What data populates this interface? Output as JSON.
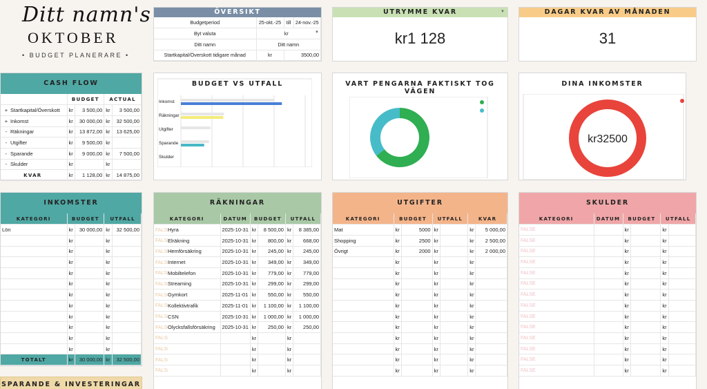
{
  "header": {
    "title": "Ditt namn's",
    "month": "OKTOBER",
    "subtitle": "• BUDGET PLANERARE •"
  },
  "colors": {
    "teal": "#4fa8a4",
    "sage": "#a9c9a6",
    "salmon": "#f4b48a",
    "pink": "#f0a6a8",
    "green_light": "#c9e0b4",
    "orange_light": "#f8cc88",
    "slate": "#7a8fa6",
    "donut_green": "#2fae52",
    "donut_cyan": "#47bcc9",
    "ring_red": "#e8443b"
  },
  "oversikt": {
    "title": "ÖVERSIKT",
    "rows": [
      {
        "label": "Budgetperiod",
        "a": "25-okt.-25",
        "b": "till",
        "c": "24-nov.-25"
      },
      {
        "label": "Byt valuta",
        "value": "kr"
      },
      {
        "label": "Ditt namn",
        "value": "Ditt namn"
      },
      {
        "label": "Startkapital/Överskott tidigare månad",
        "cur": "kr",
        "amount": "3500,00"
      }
    ]
  },
  "utrymme": {
    "title": "UTRYMME KVAR",
    "value": "kr1 128"
  },
  "dagar": {
    "title": "DAGAR KVAR AV MÅNADEN",
    "value": "31"
  },
  "cashflow": {
    "title": "CASH FLOW",
    "headers": [
      "BUDGET",
      "ACTUAL"
    ],
    "rows": [
      {
        "sign": "+",
        "label": "Startkapital/Överskott",
        "c1": "kr",
        "budget": "3 500,00",
        "c2": "kr",
        "actual": "3 500,00"
      },
      {
        "sign": "+",
        "label": "Inkomst",
        "c1": "kr",
        "budget": "30 000,00",
        "c2": "kr",
        "actual": "32 500,00"
      },
      {
        "sign": "-",
        "label": "Räkningar",
        "c1": "kr",
        "budget": "13 872,00",
        "c2": "kr",
        "actual": "13 625,00"
      },
      {
        "sign": "-",
        "label": "Utgifter",
        "c1": "kr",
        "budget": "9 500,00",
        "c2": "kr",
        "actual": ""
      },
      {
        "sign": "-",
        "label": "Sparande",
        "c1": "kr",
        "budget": "9 000,00",
        "c2": "kr",
        "actual": "7 500,00"
      },
      {
        "sign": "-",
        "label": "Skulder",
        "c1": "kr",
        "budget": "",
        "c2": "kr",
        "actual": ""
      }
    ],
    "total": {
      "label": "KVAR",
      "c1": "kr",
      "budget": "1 128,00",
      "c2": "kr",
      "actual": "14 875,00"
    }
  },
  "budget_vs_utfall": {
    "title": "BUDGET VS UTFALL"
  },
  "vart": {
    "title": "VART PENGARNA FAKTISKT TOG VÄGEN"
  },
  "dina_inkomster": {
    "title": "DINA INKOMSTER",
    "center": "kr32500"
  },
  "chart_data": [
    {
      "type": "bar",
      "categories": [
        "Inkomst",
        "Räkningar",
        "Utgifter",
        "Sparande",
        "Skulder"
      ],
      "series": [
        {
          "values": [
            30000,
            13872,
            9500,
            9000,
            0
          ],
          "color": "#e6e6e6"
        },
        {
          "values": [
            32500,
            13625,
            0,
            7500,
            0
          ],
          "color": "mixed"
        }
      ],
      "bar_colors": [
        "#4a7fd8",
        "#f3ec7a",
        "#e6e6e6",
        "#48b8c6",
        "#e6e6e6"
      ],
      "xlim": [
        0,
        40000
      ]
    },
    {
      "type": "pie",
      "labels": [
        "",
        ""
      ],
      "values": [
        13625,
        7500
      ],
      "colors": [
        "#2fae52",
        "#47bcc9"
      ]
    },
    {
      "type": "pie",
      "labels": [
        ""
      ],
      "values": [
        32500
      ],
      "colors": [
        "#e8443b"
      ]
    }
  ],
  "inkomster": {
    "title": "INKOMSTER",
    "headers": [
      "KATEGORI",
      "BUDGET",
      "UTFALL"
    ],
    "rows": [
      {
        "kat": "Lön",
        "budget": "30 000,00",
        "utfall": "32 500,00"
      },
      {
        "kat": "",
        "budget": "",
        "utfall": ""
      },
      {
        "kat": "",
        "budget": "",
        "utfall": ""
      },
      {
        "kat": "",
        "budget": "",
        "utfall": ""
      },
      {
        "kat": "",
        "budget": "",
        "utfall": ""
      },
      {
        "kat": "",
        "budget": "",
        "utfall": ""
      },
      {
        "kat": "",
        "budget": "",
        "utfall": ""
      },
      {
        "kat": "",
        "budget": "",
        "utfall": ""
      },
      {
        "kat": "",
        "budget": "",
        "utfall": ""
      },
      {
        "kat": "",
        "budget": "",
        "utfall": ""
      },
      {
        "kat": "",
        "budget": "",
        "utfall": ""
      },
      {
        "kat": "",
        "budget": "",
        "utfall": ""
      }
    ],
    "total": {
      "label": "TOTALT",
      "budget": "30 000,00",
      "utfall": "32 500,00"
    }
  },
  "sparande": {
    "title": "SPARANDE & INVESTERINGAR"
  },
  "rakningar": {
    "title": "RÄKNINGAR",
    "headers": [
      "KATEGORI",
      "DATUM",
      "BUDGET",
      "UTFALL"
    ],
    "rows": [
      {
        "f": "FALSE",
        "kat": "Hyra",
        "datum": "2025-10-31",
        "budget": "8 500,00",
        "utfall": "8 385,00"
      },
      {
        "f": "FALSE",
        "kat": "Elräkning",
        "datum": "2025-10-31",
        "budget": "800,00",
        "utfall": "668,00"
      },
      {
        "f": "FALSE",
        "kat": "Hemförsäkring",
        "datum": "2025-10-31",
        "budget": "245,00",
        "utfall": "245,00"
      },
      {
        "f": "FALSE",
        "kat": "Internet",
        "datum": "2025-10-31",
        "budget": "349,00",
        "utfall": "349,00"
      },
      {
        "f": "FALSE",
        "kat": "Mobiltelefon",
        "datum": "2025-10-31",
        "budget": "779,00",
        "utfall": "779,00"
      },
      {
        "f": "FALSE",
        "kat": "Streaming",
        "datum": "2025-10-31",
        "budget": "299,00",
        "utfall": "299,00"
      },
      {
        "f": "FALSE",
        "kat": "Gymkort",
        "datum": "2025-11-01",
        "budget": "550,00",
        "utfall": "550,00"
      },
      {
        "f": "FALSE",
        "kat": "Kollektivtrafik",
        "datum": "2025-11-01",
        "budget": "1 100,00",
        "utfall": "1 100,00"
      },
      {
        "f": "FALSE",
        "kat": "CSN",
        "datum": "2025-10-31",
        "budget": "1 000,00",
        "utfall": "1 000,00"
      },
      {
        "f": "FALSE",
        "kat": "Olycksfallsförsäkring",
        "datum": "2025-10-31",
        "budget": "250,00",
        "utfall": "250,00"
      },
      {
        "f": "FALSE",
        "kat": "",
        "datum": "",
        "budget": "",
        "utfall": ""
      },
      {
        "f": "FALSE",
        "kat": "",
        "datum": "",
        "budget": "",
        "utfall": ""
      },
      {
        "f": "FALSE",
        "kat": "",
        "datum": "",
        "budget": "",
        "utfall": ""
      },
      {
        "f": "FALSE",
        "kat": "",
        "datum": "",
        "budget": "",
        "utfall": ""
      }
    ]
  },
  "utgifter": {
    "title": "UTGIFTER",
    "headers": [
      "KATEGORI",
      "BUDGET",
      "UTFALL",
      "KVAR"
    ],
    "rows": [
      {
        "kat": "Mat",
        "budget": "5000",
        "utfall": "",
        "kvar": "5 000,00"
      },
      {
        "kat": "Shopping",
        "budget": "2500",
        "utfall": "",
        "kvar": "2 500,00"
      },
      {
        "kat": "Övrigt",
        "budget": "2000",
        "utfall": "",
        "kvar": "2 000,00"
      },
      {
        "kat": "",
        "budget": "",
        "utfall": "",
        "kvar": ""
      },
      {
        "kat": "",
        "budget": "",
        "utfall": "",
        "kvar": ""
      },
      {
        "kat": "",
        "budget": "",
        "utfall": "",
        "kvar": ""
      },
      {
        "kat": "",
        "budget": "",
        "utfall": "",
        "kvar": ""
      },
      {
        "kat": "",
        "budget": "",
        "utfall": "",
        "kvar": ""
      },
      {
        "kat": "",
        "budget": "",
        "utfall": "",
        "kvar": ""
      },
      {
        "kat": "",
        "budget": "",
        "utfall": "",
        "kvar": ""
      },
      {
        "kat": "",
        "budget": "",
        "utfall": "",
        "kvar": ""
      },
      {
        "kat": "",
        "budget": "",
        "utfall": "",
        "kvar": ""
      },
      {
        "kat": "",
        "budget": "",
        "utfall": "",
        "kvar": ""
      },
      {
        "kat": "",
        "budget": "",
        "utfall": "",
        "kvar": ""
      }
    ]
  },
  "skulder": {
    "title": "SKULDER",
    "headers": [
      "KATEGORI",
      "DATUM",
      "BUDGET",
      "UTFALL"
    ],
    "rows": [
      {
        "f": "FALSE"
      },
      {
        "f": "FALSE"
      },
      {
        "f": "FALSE"
      },
      {
        "f": "FALSE"
      },
      {
        "f": "FALSE"
      },
      {
        "f": "FALSE"
      },
      {
        "f": "FALSE"
      },
      {
        "f": "FALSE"
      },
      {
        "f": "FALSE"
      },
      {
        "f": "FALSE"
      },
      {
        "f": "FALSE"
      },
      {
        "f": "FALSE"
      },
      {
        "f": "FALSE"
      },
      {
        "f": "FALSE"
      }
    ]
  },
  "cur": "kr"
}
